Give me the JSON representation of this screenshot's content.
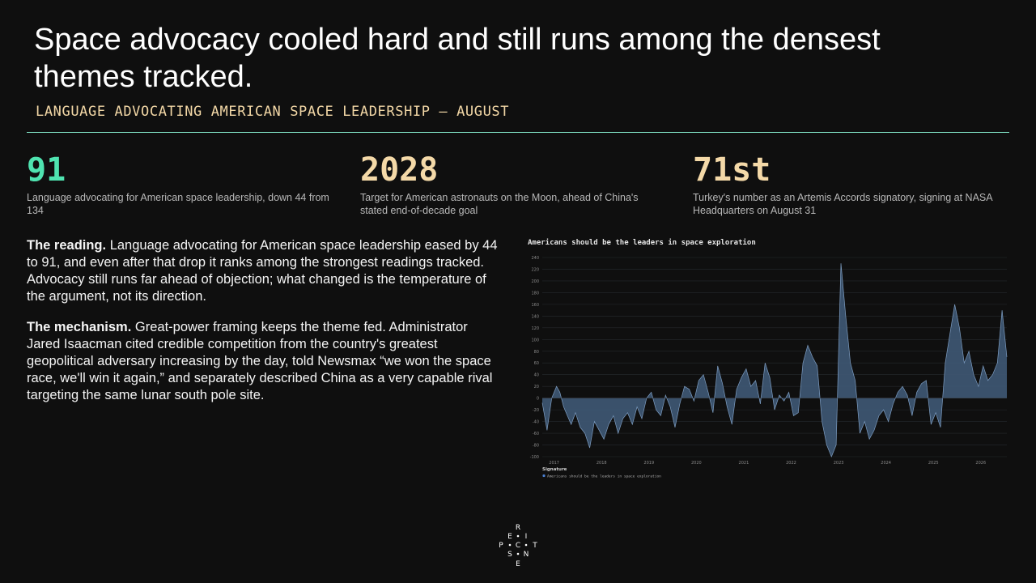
{
  "header": {
    "title": "Space advocacy cooled hard and still runs among the densest themes tracked.",
    "subtitle": "LANGUAGE ADVOCATING AMERICAN SPACE LEADERSHIP — AUGUST"
  },
  "stats": [
    {
      "value": "91",
      "description": "Language advocating for American space leadership, down 44 from 134",
      "color": "#4fe3b0"
    },
    {
      "value": "2028",
      "description": "Target for American astronauts on the Moon, ahead of China's stated end-of-decade goal",
      "color": "#f4d9a8"
    },
    {
      "value": "71st",
      "description": "Turkey's number as an Artemis Accords signatory, signing at NASA Headquarters on August 31",
      "color": "#f4d9a8"
    }
  ],
  "body": {
    "p1_lead": "The reading.",
    "p1_text": "Language advocating for American space leadership eased by 44 to 91, and even after that drop it ranks among the strongest readings tracked. Advocacy still runs far ahead of objection; what changed is the temperature of the argument, not its direction.",
    "p2_lead": "The mechanism.",
    "p2_text": "Great-power framing keeps the theme fed. Administrator Jared Isaacman cited credible competition from the country's greatest geopolitical adversary increasing by the day, told Newsmax “we won the space race, we'll win it again,” and separately described China as a very capable rival targeting the same lunar south pole site."
  },
  "chart_data": {
    "type": "area",
    "title": "Americans should be the leaders in space exploration",
    "xlabel": "",
    "ylabel": "",
    "ylim": [
      -100,
      240
    ],
    "yticks": [
      -100,
      -80,
      -60,
      -40,
      -20,
      0,
      20,
      40,
      60,
      80,
      100,
      120,
      140,
      160,
      180,
      200,
      220,
      240
    ],
    "xticks": [
      "2017",
      "2018",
      "2019",
      "2020",
      "2021",
      "2022",
      "2023",
      "2024",
      "2025",
      "2026"
    ],
    "xrange": [
      2016.75,
      2026.55
    ],
    "grid": true,
    "legend_title": "Signature",
    "legend_placement": "bottom-left",
    "colors": {
      "fill": "#3d5571",
      "line": "#7d9dc2"
    },
    "series": [
      {
        "name": "Americans should be the leaders in space exploration",
        "x": [
          2016.75,
          2016.85,
          2016.95,
          2017.05,
          2017.12,
          2017.2,
          2017.28,
          2017.36,
          2017.45,
          2017.55,
          2017.65,
          2017.75,
          2017.85,
          2017.95,
          2018.05,
          2018.15,
          2018.25,
          2018.35,
          2018.45,
          2018.55,
          2018.65,
          2018.75,
          2018.85,
          2018.95,
          2019.05,
          2019.15,
          2019.25,
          2019.35,
          2019.45,
          2019.55,
          2019.65,
          2019.75,
          2019.85,
          2019.95,
          2020.05,
          2020.15,
          2020.25,
          2020.35,
          2020.45,
          2020.55,
          2020.65,
          2020.75,
          2020.85,
          2020.95,
          2021.05,
          2021.15,
          2021.25,
          2021.35,
          2021.45,
          2021.55,
          2021.65,
          2021.75,
          2021.85,
          2021.95,
          2022.05,
          2022.15,
          2022.25,
          2022.35,
          2022.45,
          2022.55,
          2022.65,
          2022.75,
          2022.85,
          2022.95,
          2023.05,
          2023.15,
          2023.25,
          2023.35,
          2023.45,
          2023.55,
          2023.65,
          2023.75,
          2023.85,
          2023.95,
          2024.05,
          2024.15,
          2024.25,
          2024.35,
          2024.45,
          2024.55,
          2024.65,
          2024.75,
          2024.85,
          2024.95,
          2025.05,
          2025.15,
          2025.25,
          2025.35,
          2025.45,
          2025.55,
          2025.65,
          2025.75,
          2025.85,
          2025.95,
          2026.05,
          2026.15,
          2026.25,
          2026.35,
          2026.45,
          2026.55
        ],
        "y": [
          -8,
          -55,
          0,
          20,
          10,
          -15,
          -30,
          -45,
          -25,
          -50,
          -60,
          -85,
          -40,
          -55,
          -70,
          -45,
          -30,
          -60,
          -35,
          -25,
          -45,
          -15,
          -35,
          0,
          10,
          -20,
          -30,
          5,
          -15,
          -50,
          -10,
          20,
          15,
          -5,
          30,
          40,
          10,
          -25,
          55,
          25,
          -15,
          -45,
          15,
          35,
          50,
          20,
          30,
          -10,
          60,
          35,
          -20,
          5,
          -5,
          10,
          -30,
          -25,
          60,
          90,
          70,
          55,
          -40,
          -80,
          -100,
          -80,
          230,
          140,
          60,
          30,
          -60,
          -40,
          -70,
          -55,
          -30,
          -20,
          -40,
          -10,
          10,
          20,
          5,
          -30,
          10,
          25,
          30,
          -45,
          -25,
          -50,
          60,
          110,
          160,
          120,
          60,
          80,
          40,
          20,
          55,
          30,
          40,
          60,
          150,
          70
        ]
      }
    ]
  },
  "logo": {
    "letters": [
      "R",
      "E",
      "I",
      "P",
      "C",
      "T",
      "S",
      "N",
      "E"
    ]
  }
}
